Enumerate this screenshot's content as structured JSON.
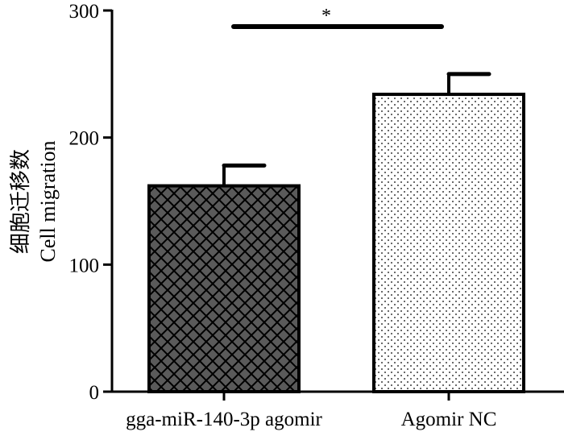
{
  "chart_data": {
    "type": "bar",
    "categories": [
      "gga-miR-140-3p agomir",
      "Agomir NC"
    ],
    "values": [
      162,
      234
    ],
    "errors": [
      16,
      16
    ],
    "patterns": [
      "crosshatch",
      "dots"
    ],
    "ylabel_cn": "细胞迁移数",
    "ylabel": "Cell migration",
    "yticks": [
      0,
      100,
      200,
      300
    ],
    "ylim": [
      0,
      300
    ],
    "significance": {
      "label": "*",
      "between": [
        0,
        1
      ]
    },
    "colors": {
      "bar_dark": "#5a5a5a",
      "bar_light": "#ffffff",
      "axis": "#000000"
    }
  }
}
